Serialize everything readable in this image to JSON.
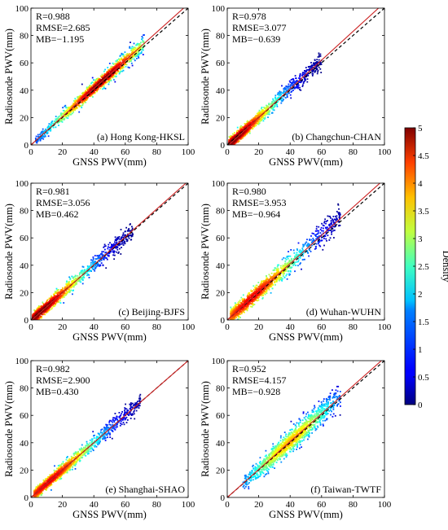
{
  "figure": {
    "colorbar": {
      "label": "Density",
      "min": 0,
      "max": 5,
      "ticks": [
        "0",
        "0.5",
        "1",
        "1.5",
        "2",
        "2.5",
        "3",
        "3.5",
        "4",
        "4.5",
        "5"
      ],
      "colormap": "jet"
    },
    "colors": {
      "fit_line": "#cc2222",
      "one_to_one_line": "#000000"
    }
  },
  "chart_data": [
    {
      "type": "scatter",
      "panel_label": "(a) Hong Kong-HKSL",
      "xlabel": "GNSS PWV(mm)",
      "ylabel": "Radiosonde PWV(mm)",
      "xlim": [
        0,
        100
      ],
      "ylim": [
        0,
        100
      ],
      "xticks": [
        "0",
        "20",
        "40",
        "60",
        "80",
        "100"
      ],
      "yticks": [
        "0",
        "20",
        "40",
        "60",
        "80",
        "100"
      ],
      "stats": [
        "R=0.988",
        "RMSE=2.685",
        "MB=−1.195"
      ],
      "fit_line": {
        "slope": 1.03,
        "intercept": 0
      },
      "one_to_one": {
        "slope": 1,
        "intercept": 0
      },
      "x_range": [
        3,
        72
      ],
      "x_mode": 45,
      "spread": 2.7,
      "density_peak": 5
    },
    {
      "type": "scatter",
      "panel_label": "(b) Changchun-CHAN",
      "xlabel": "GNSS PWV(mm)",
      "ylabel": "Radiosonde PWV(mm)",
      "xlim": [
        0,
        100
      ],
      "ylim": [
        0,
        100
      ],
      "xticks": [
        "0",
        "20",
        "40",
        "60",
        "80",
        "100"
      ],
      "yticks": [
        "0",
        "20",
        "40",
        "60",
        "80",
        "100"
      ],
      "stats": [
        "R=0.978",
        "RMSE=3.077",
        "MB=−0.639"
      ],
      "fit_line": {
        "slope": 1.05,
        "intercept": -1
      },
      "one_to_one": {
        "slope": 1,
        "intercept": 0
      },
      "x_range": [
        1,
        60
      ],
      "x_mode": 5,
      "spread": 3.1,
      "density_peak": 5
    },
    {
      "type": "scatter",
      "panel_label": "(c) Beijing-BJFS",
      "xlabel": "GNSS PWV(mm)",
      "ylabel": "Radiosonde PWV(mm)",
      "xlim": [
        0,
        100
      ],
      "ylim": [
        0,
        100
      ],
      "xticks": [
        "0",
        "20",
        "40",
        "60",
        "80",
        "100"
      ],
      "yticks": [
        "0",
        "20",
        "40",
        "60",
        "80",
        "100"
      ],
      "stats": [
        "R=0.981",
        "RMSE=3.056",
        "MB=0.462"
      ],
      "fit_line": {
        "slope": 1.02,
        "intercept": -0.5
      },
      "one_to_one": {
        "slope": 1,
        "intercept": 0
      },
      "x_range": [
        1,
        65
      ],
      "x_mode": 6,
      "spread": 3.1,
      "density_peak": 5
    },
    {
      "type": "scatter",
      "panel_label": "(d) Wuhan-WUHN",
      "xlabel": "GNSS PWV(mm)",
      "ylabel": "Radiosonde PWV(mm)",
      "xlim": [
        0,
        100
      ],
      "ylim": [
        0,
        100
      ],
      "xticks": [
        "0",
        "20",
        "40",
        "60",
        "80",
        "100"
      ],
      "yticks": [
        "0",
        "20",
        "40",
        "60",
        "80",
        "100"
      ],
      "stats": [
        "R=0.980",
        "RMSE=3.953",
        "MB=−0.964"
      ],
      "fit_line": {
        "slope": 1.03,
        "intercept": 0
      },
      "one_to_one": {
        "slope": 1,
        "intercept": 0
      },
      "x_range": [
        2,
        72
      ],
      "x_mode": 15,
      "spread": 4.0,
      "density_peak": 4.5
    },
    {
      "type": "scatter",
      "panel_label": "(e) Shanghai-SHAO",
      "xlabel": "GNSS PWV(mm)",
      "ylabel": "Radiosonde PWV(mm)",
      "xlim": [
        0,
        100
      ],
      "ylim": [
        0,
        100
      ],
      "xticks": [
        "0",
        "20",
        "40",
        "60",
        "80",
        "100"
      ],
      "yticks": [
        "0",
        "20",
        "40",
        "60",
        "80",
        "100"
      ],
      "stats": [
        "R=0.982",
        "RMSE=2.900",
        "MB=0.430"
      ],
      "fit_line": {
        "slope": 1.0,
        "intercept": 0
      },
      "one_to_one": {
        "slope": 1,
        "intercept": 0
      },
      "x_range": [
        2,
        70
      ],
      "x_mode": 12,
      "spread": 2.9,
      "density_peak": 4.5
    },
    {
      "type": "scatter",
      "panel_label": "(f) Taiwan-TWTF",
      "xlabel": "GNSS PWV(mm)",
      "ylabel": "Radiosonde PWV(mm)",
      "xlim": [
        0,
        100
      ],
      "ylim": [
        0,
        100
      ],
      "xticks": [
        "0",
        "20",
        "40",
        "60",
        "80",
        "100"
      ],
      "yticks": [
        "0",
        "20",
        "40",
        "60",
        "80",
        "100"
      ],
      "stats": [
        "R=0.952",
        "RMSE=4.157",
        "MB=−0.928"
      ],
      "fit_line": {
        "slope": 1.02,
        "intercept": 0
      },
      "one_to_one": {
        "slope": 1,
        "intercept": 0
      },
      "x_range": [
        10,
        72
      ],
      "x_mode": 40,
      "spread": 4.2,
      "density_peak": 3.5
    }
  ]
}
